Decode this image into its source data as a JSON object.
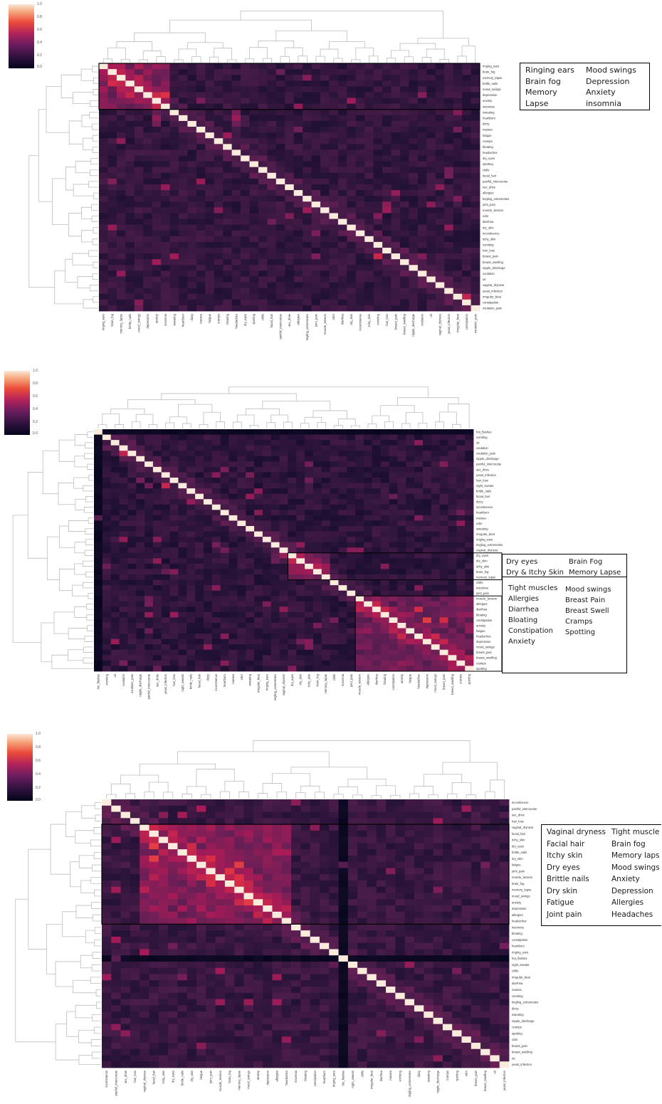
{
  "colorbar_ticks": [
    "1.0",
    "0.8",
    "0.6",
    "0.4",
    "0.2",
    "0.0"
  ],
  "colors": {
    "hot": "#fbe6d3",
    "mid": "#b4235a",
    "cold": "#03051a"
  },
  "chart_data": [
    {
      "type": "heatmap",
      "clustered": true,
      "dendrograms": [
        "top",
        "left"
      ],
      "value_range": [
        0,
        1
      ],
      "diagonal_value": 1.0,
      "labels": [
        "ringing_ears",
        "brain_fog",
        "memory_lapse",
        "brittle_nails",
        "mood_swings",
        "depression",
        "anxiety",
        "insomnia",
        "sweating",
        "heartburn",
        "dizzy",
        "nausea",
        "fatigue",
        "cramps",
        "bloating",
        "headaches",
        "dry_eyes",
        "spotting",
        "chills",
        "facial_hair",
        "painful_intercourse",
        "sex_drive",
        "allergies",
        "tingling_extremeties",
        "joint_pain",
        "muscle_tension",
        "odor",
        "diarrhea",
        "dry_skin",
        "incontinence",
        "itchy_skin",
        "vomiting",
        "hair_loss",
        "breast_pain",
        "breast_swelling",
        "nipple_discharge",
        "ovulation",
        "uti",
        "vaginal_dryness",
        "yeast_infection",
        "irregular_beat",
        "constipation",
        "ovulation_pain"
      ],
      "highlight_rows": [
        0,
        7
      ],
      "annotation_columns": [
        [
          "Ringing ears",
          "Brain fog",
          "Memory",
          "Lapse"
        ],
        [
          "Mood swings",
          "Depression",
          "Anxiety",
          "insomnia"
        ]
      ]
    },
    {
      "type": "heatmap",
      "clustered": true,
      "dendrograms": [
        "top",
        "left"
      ],
      "value_range": [
        0,
        1
      ],
      "diagonal_value": 1.0,
      "labels": [
        "hot_flashes",
        "vomiting",
        "uti",
        "ovulation",
        "ovulation_pain",
        "nipple_discharge",
        "painful_intercourse",
        "sex_drive",
        "yeast_infection",
        "hair_loss",
        "night_sweats",
        "brittle_nails",
        "facial_hair",
        "dizzy",
        "incontinence",
        "heartburn",
        "nausea",
        "odor",
        "sweating",
        "irregular_beat",
        "ringing_ears",
        "tingling_extremeties",
        "vaginal_dryness",
        "dry_eyes",
        "dry_skin",
        "itchy_skin",
        "brain_fog",
        "memory_lapse",
        "chills",
        "insomnia",
        "joint_pain",
        "muscle_tension",
        "allergies",
        "diarrhea",
        "bloating",
        "constipation",
        "anxiety",
        "fatigue",
        "headaches",
        "depression",
        "mood_swings",
        "breast_pain",
        "breast_swelling",
        "cramps",
        "spotting"
      ],
      "highlight_blocks": [
        [
          23,
          27
        ],
        [
          31,
          44
        ]
      ],
      "annotation_columns": [
        [
          "Dry eyes",
          "Dry & Itchy Skin"
        ],
        [
          "Brain Fog",
          "Memory Lapse"
        ],
        [
          "Tight muscles",
          "Allergies",
          "Diarrhea",
          "Bloating",
          "Constipation",
          "Anxiety"
        ],
        [
          "Mood swings",
          "Breast Pain",
          "Breast Swell",
          "Cramps",
          "Spotting"
        ]
      ]
    },
    {
      "type": "heatmap",
      "clustered": true,
      "dendrograms": [
        "top",
        "left"
      ],
      "value_range": [
        0,
        1
      ],
      "diagonal_value": 1.0,
      "labels": [
        "incontinence",
        "painful_intercourse",
        "sex_drive",
        "hair_loss",
        "vaginal_dryness",
        "facial_hair",
        "itchy_skin",
        "dry_eyes",
        "brittle_nails",
        "dry_skin",
        "fatigue",
        "joint_pain",
        "muscle_tension",
        "brain_fog",
        "memory_lapse",
        "mood_swings",
        "anxiety",
        "depression",
        "allergies",
        "headaches",
        "insomnia",
        "bloating",
        "constipation",
        "heartburn",
        "ringing_ears",
        "hot_flashes",
        "night_sweats",
        "chills",
        "irregular_beat",
        "diarrhea",
        "nausea",
        "vomiting",
        "tingling_extremeties",
        "dizzy",
        "sweating",
        "nipple_discharge",
        "cramps",
        "spotting",
        "odor",
        "breast_pain",
        "breast_swelling",
        "uti",
        "yeast_infection"
      ],
      "highlight_rows": [
        4,
        19
      ],
      "annotation_columns": [
        [
          "Vaginal dryness",
          "Facial hair",
          "Itchy skin",
          "Dry eyes",
          "Brittle nails",
          "Dry skin",
          "Fatigue",
          "Joint pain"
        ],
        [
          "Tight muscle",
          "Brain fog",
          "Memory laps",
          "Mood swings",
          "Anxiety",
          "Depression",
          "Allergies",
          "Headaches"
        ]
      ]
    }
  ]
}
